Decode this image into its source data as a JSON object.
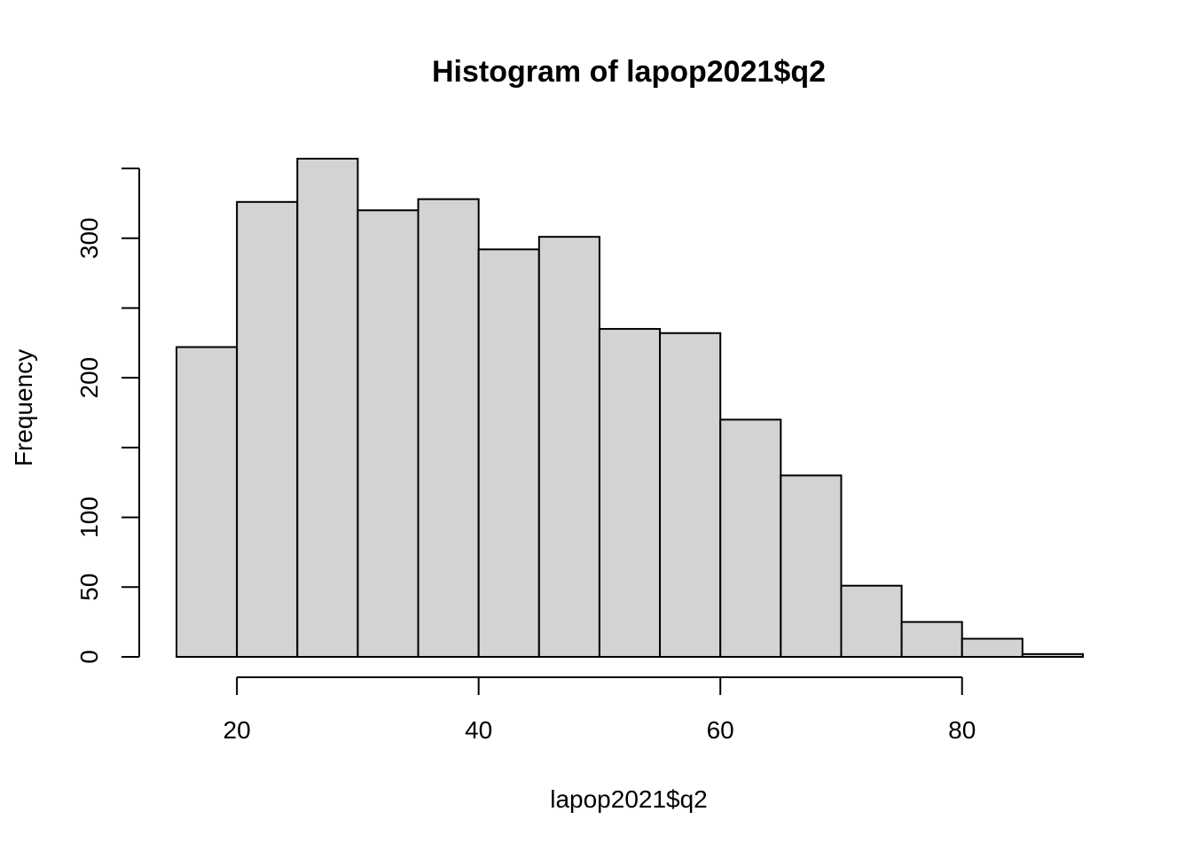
{
  "chart_data": {
    "type": "bar",
    "title": "Histogram of lapop2021$q2",
    "xlabel": "lapop2021$q2",
    "ylabel": "Frequency",
    "bins": [
      {
        "x0": 15,
        "x1": 20,
        "value": 222
      },
      {
        "x0": 20,
        "x1": 25,
        "value": 326
      },
      {
        "x0": 25,
        "x1": 30,
        "value": 357
      },
      {
        "x0": 30,
        "x1": 35,
        "value": 320
      },
      {
        "x0": 35,
        "x1": 40,
        "value": 328
      },
      {
        "x0": 40,
        "x1": 45,
        "value": 292
      },
      {
        "x0": 45,
        "x1": 50,
        "value": 301
      },
      {
        "x0": 50,
        "x1": 55,
        "value": 235
      },
      {
        "x0": 55,
        "x1": 60,
        "value": 232
      },
      {
        "x0": 60,
        "x1": 65,
        "value": 170
      },
      {
        "x0": 65,
        "x1": 70,
        "value": 130
      },
      {
        "x0": 70,
        "x1": 75,
        "value": 51
      },
      {
        "x0": 75,
        "x1": 80,
        "value": 25
      },
      {
        "x0": 80,
        "x1": 85,
        "value": 13
      },
      {
        "x0": 85,
        "x1": 90,
        "value": 2
      }
    ],
    "xlim": [
      15,
      90
    ],
    "ylim": [
      0,
      357
    ],
    "xticks": [
      20,
      40,
      60,
      80
    ],
    "xtick_labels": [
      "20",
      "40",
      "60",
      "80"
    ],
    "yticks": [
      0,
      50,
      100,
      150,
      200,
      250,
      300,
      350
    ],
    "ytick_labels": [
      "0",
      "50",
      "100",
      "",
      "200",
      "",
      "300",
      ""
    ],
    "grid": false,
    "bar_color": "#d3d3d3",
    "edge_color": "#000000"
  }
}
